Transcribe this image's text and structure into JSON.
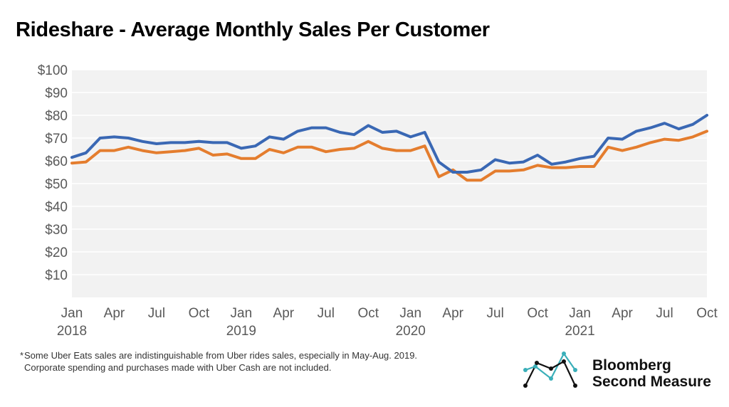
{
  "title": "Rideshare - Average Monthly Sales Per Customer",
  "footnote": {
    "marker": "*",
    "lines": [
      "Some Uber Eats sales are indistinguishable from Uber rides sales, especially in May-Aug. 2019.",
      "Corporate spending and purchases made with Uber Cash are not included."
    ]
  },
  "brand": {
    "line1": "Bloomberg",
    "line2": "Second Measure"
  },
  "colors": {
    "series_blue": "#3A68B4",
    "series_orange": "#E47D2E",
    "plot_bg": "#F2F2F2",
    "grid": "#FFFFFF"
  },
  "chart_data": {
    "type": "line",
    "title": "Rideshare - Average Monthly Sales Per Customer",
    "xlabel": "",
    "ylabel": "",
    "ylim": [
      0,
      100
    ],
    "yticks": [
      10,
      20,
      30,
      40,
      50,
      60,
      70,
      80,
      90,
      100
    ],
    "ytick_labels": [
      "$10",
      "$20",
      "$30",
      "$40",
      "$50",
      "$60",
      "$70",
      "$80",
      "$90",
      "$100"
    ],
    "x_tick_labels": [
      {
        "index": 0,
        "month": "Jan",
        "year": "2018"
      },
      {
        "index": 3,
        "month": "Apr",
        "year": ""
      },
      {
        "index": 6,
        "month": "Jul",
        "year": ""
      },
      {
        "index": 9,
        "month": "Oct",
        "year": ""
      },
      {
        "index": 12,
        "month": "Jan",
        "year": "2019"
      },
      {
        "index": 15,
        "month": "Apr",
        "year": ""
      },
      {
        "index": 18,
        "month": "Jul",
        "year": ""
      },
      {
        "index": 21,
        "month": "Oct",
        "year": ""
      },
      {
        "index": 24,
        "month": "Jan",
        "year": "2020"
      },
      {
        "index": 27,
        "month": "Apr",
        "year": ""
      },
      {
        "index": 30,
        "month": "Jul",
        "year": ""
      },
      {
        "index": 33,
        "month": "Oct",
        "year": ""
      },
      {
        "index": 36,
        "month": "Jan",
        "year": "2021"
      },
      {
        "index": 39,
        "month": "Apr",
        "year": ""
      },
      {
        "index": 42,
        "month": "Jul",
        "year": ""
      },
      {
        "index": 45,
        "month": "Oct",
        "year": ""
      }
    ],
    "series": [
      {
        "name": "Blue series",
        "color": "#3A68B4",
        "values": [
          61.5,
          63.5,
          70,
          70.5,
          70,
          68.5,
          67.5,
          68,
          68,
          68.5,
          68,
          68,
          65.5,
          66.5,
          70.5,
          69.5,
          73,
          74.5,
          74.5,
          72.5,
          71.5,
          75.5,
          72.5,
          73,
          70.5,
          72.5,
          59.5,
          55,
          55,
          56,
          60.5,
          59,
          59.5,
          62.5,
          58.5,
          59.5,
          61,
          62,
          70,
          69.5,
          73,
          74.5,
          76.5,
          74,
          76,
          80
        ]
      },
      {
        "name": "Orange series",
        "color": "#E47D2E",
        "values": [
          59,
          59.5,
          64.5,
          64.5,
          66,
          64.5,
          63.5,
          64,
          64.5,
          65.5,
          62.5,
          63,
          61,
          61,
          65,
          63.5,
          66,
          66,
          64,
          65,
          65.5,
          68.5,
          65.5,
          64.5,
          64.5,
          66.5,
          53,
          56,
          51.5,
          51.5,
          55.5,
          55.5,
          56,
          58,
          57,
          57,
          57.5,
          57.5,
          66,
          64.5,
          66,
          68,
          69.5,
          69,
          70.5,
          73
        ]
      }
    ]
  }
}
